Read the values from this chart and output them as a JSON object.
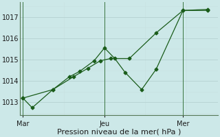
{
  "background_color": "#cce8e8",
  "grid_color_major": "#b8d4d4",
  "grid_color_minor": "#c8e0e0",
  "line_color": "#1a5c1a",
  "marker_color": "#1a5c1a",
  "xlabel": "Pression niveau de la mer( hPa )",
  "ylim": [
    1012.4,
    1017.7
  ],
  "yticks": [
    1013,
    1014,
    1015,
    1016,
    1017
  ],
  "day_labels": [
    "Mar",
    "Jeu",
    "Mer"
  ],
  "day_positions": [
    0.05,
    4.0,
    7.8
  ],
  "vline_x": [
    0.05,
    4.0,
    7.8
  ],
  "series1_x": [
    0.05,
    0.5,
    1.5,
    2.5,
    3.2,
    3.8,
    4.3,
    5.2,
    6.5,
    7.8,
    9.0
  ],
  "series1_y": [
    1013.2,
    1012.75,
    1013.6,
    1014.2,
    1014.6,
    1014.95,
    1015.05,
    1015.05,
    1016.25,
    1017.3,
    1017.3
  ],
  "series2_x": [
    0.05,
    1.5,
    2.3,
    2.8,
    3.5,
    4.0,
    4.5,
    5.0,
    5.8,
    6.5,
    7.8,
    9.0
  ],
  "series2_y": [
    1013.2,
    1013.6,
    1014.2,
    1014.45,
    1014.95,
    1015.55,
    1015.05,
    1014.4,
    1013.6,
    1014.55,
    1017.3,
    1017.35
  ],
  "xlim": [
    -0.1,
    9.5
  ],
  "figsize": [
    3.2,
    2.0
  ],
  "dpi": 100,
  "xlabel_fontsize": 8,
  "ytick_fontsize": 7,
  "xtick_fontsize": 7
}
